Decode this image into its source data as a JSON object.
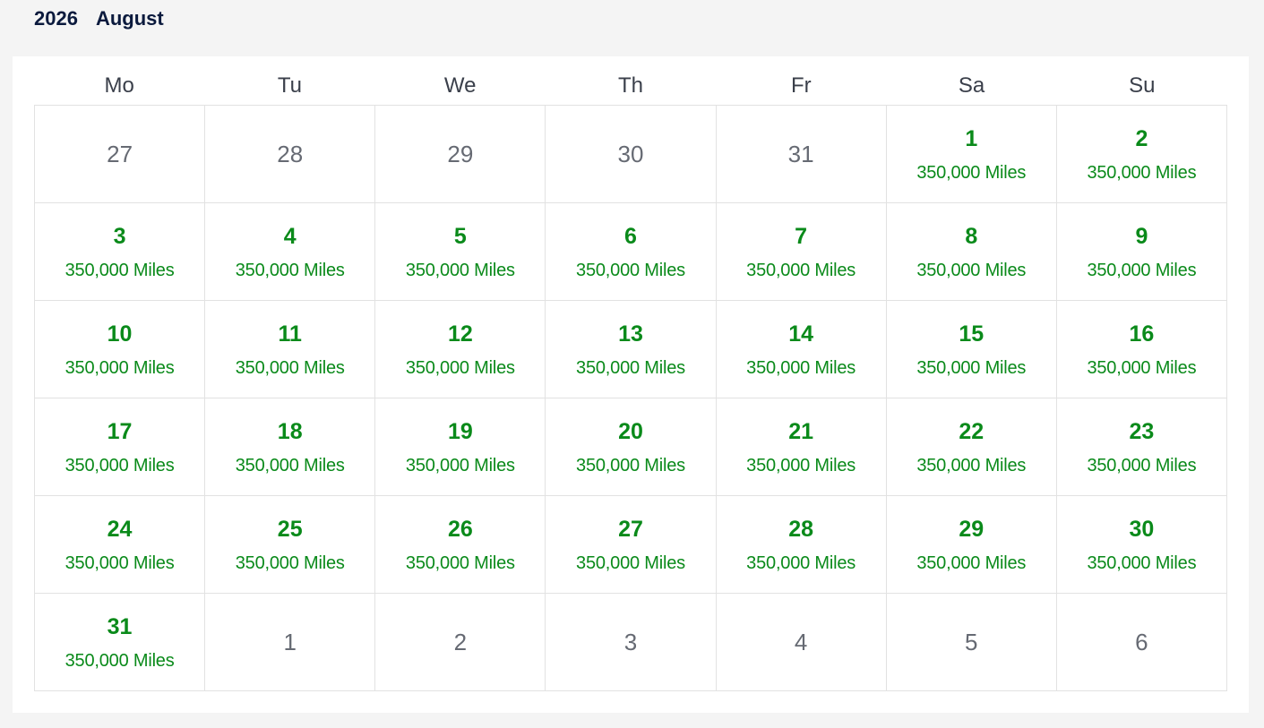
{
  "header": {
    "year": "2026",
    "month": "August"
  },
  "weekdays": [
    "Mo",
    "Tu",
    "We",
    "Th",
    "Fr",
    "Sa",
    "Su"
  ],
  "colors": {
    "available": "#0a8a1a",
    "outside_month": "#666a73",
    "header_text": "#0b1a3d"
  },
  "days": [
    {
      "day": "27",
      "in_month": false
    },
    {
      "day": "28",
      "in_month": false
    },
    {
      "day": "29",
      "in_month": false
    },
    {
      "day": "30",
      "in_month": false
    },
    {
      "day": "31",
      "in_month": false
    },
    {
      "day": "1",
      "in_month": true,
      "miles": "350,000 Miles"
    },
    {
      "day": "2",
      "in_month": true,
      "miles": "350,000 Miles"
    },
    {
      "day": "3",
      "in_month": true,
      "miles": "350,000 Miles"
    },
    {
      "day": "4",
      "in_month": true,
      "miles": "350,000 Miles"
    },
    {
      "day": "5",
      "in_month": true,
      "miles": "350,000 Miles"
    },
    {
      "day": "6",
      "in_month": true,
      "miles": "350,000 Miles"
    },
    {
      "day": "7",
      "in_month": true,
      "miles": "350,000 Miles"
    },
    {
      "day": "8",
      "in_month": true,
      "miles": "350,000 Miles"
    },
    {
      "day": "9",
      "in_month": true,
      "miles": "350,000 Miles"
    },
    {
      "day": "10",
      "in_month": true,
      "miles": "350,000 Miles"
    },
    {
      "day": "11",
      "in_month": true,
      "miles": "350,000 Miles"
    },
    {
      "day": "12",
      "in_month": true,
      "miles": "350,000 Miles"
    },
    {
      "day": "13",
      "in_month": true,
      "miles": "350,000 Miles"
    },
    {
      "day": "14",
      "in_month": true,
      "miles": "350,000 Miles"
    },
    {
      "day": "15",
      "in_month": true,
      "miles": "350,000 Miles"
    },
    {
      "day": "16",
      "in_month": true,
      "miles": "350,000 Miles"
    },
    {
      "day": "17",
      "in_month": true,
      "miles": "350,000 Miles"
    },
    {
      "day": "18",
      "in_month": true,
      "miles": "350,000 Miles"
    },
    {
      "day": "19",
      "in_month": true,
      "miles": "350,000 Miles"
    },
    {
      "day": "20",
      "in_month": true,
      "miles": "350,000 Miles"
    },
    {
      "day": "21",
      "in_month": true,
      "miles": "350,000 Miles"
    },
    {
      "day": "22",
      "in_month": true,
      "miles": "350,000 Miles"
    },
    {
      "day": "23",
      "in_month": true,
      "miles": "350,000 Miles"
    },
    {
      "day": "24",
      "in_month": true,
      "miles": "350,000 Miles"
    },
    {
      "day": "25",
      "in_month": true,
      "miles": "350,000 Miles"
    },
    {
      "day": "26",
      "in_month": true,
      "miles": "350,000 Miles"
    },
    {
      "day": "27",
      "in_month": true,
      "miles": "350,000 Miles"
    },
    {
      "day": "28",
      "in_month": true,
      "miles": "350,000 Miles"
    },
    {
      "day": "29",
      "in_month": true,
      "miles": "350,000 Miles"
    },
    {
      "day": "30",
      "in_month": true,
      "miles": "350,000 Miles"
    },
    {
      "day": "31",
      "in_month": true,
      "miles": "350,000 Miles"
    },
    {
      "day": "1",
      "in_month": false
    },
    {
      "day": "2",
      "in_month": false
    },
    {
      "day": "3",
      "in_month": false
    },
    {
      "day": "4",
      "in_month": false
    },
    {
      "day": "5",
      "in_month": false
    },
    {
      "day": "6",
      "in_month": false
    }
  ]
}
